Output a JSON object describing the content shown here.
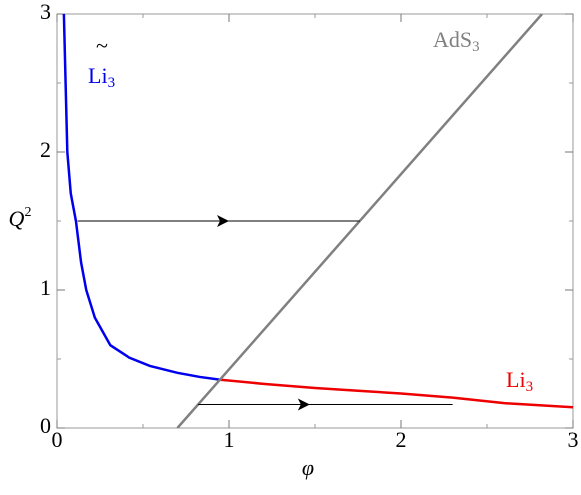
{
  "chart_data": {
    "type": "line",
    "xlabel": "φ",
    "ylabel": {
      "text": "Q",
      "sup": "2"
    },
    "xlim": [
      0,
      3
    ],
    "ylim": [
      0,
      3
    ],
    "xticks": [
      0,
      1,
      2,
      3
    ],
    "yticks": [
      0,
      1,
      2,
      3
    ],
    "xminor": [
      0.5,
      1.5,
      2.5
    ],
    "yminor": [
      0.5,
      1.5,
      2.5
    ],
    "series": [
      {
        "color": "#0000ee",
        "label": {
          "tilde": "~",
          "text": "Li",
          "sub": "3"
        },
        "x": [
          0.04,
          0.06,
          0.08,
          0.11,
          0.14,
          0.17,
          0.22,
          0.31,
          0.42,
          0.54,
          0.7,
          0.83,
          0.95
        ],
        "values": [
          3,
          2,
          1.7,
          1.5,
          1.2,
          1,
          0.8,
          0.6,
          0.51,
          0.45,
          0.4,
          0.37,
          0.35
        ]
      },
      {
        "color": "#ee0000",
        "label": {
          "text": "Li",
          "sub": "3"
        },
        "x": [
          0.95,
          1.2,
          1.5,
          1.75,
          2,
          2.3,
          2.6,
          3
        ],
        "values": [
          0.35,
          0.32,
          0.29,
          0.27,
          0.25,
          0.22,
          0.18,
          0.15
        ]
      },
      {
        "color": "#808080",
        "label": {
          "text": "AdS",
          "sub": "3"
        },
        "x": [
          0.7,
          2.82
        ],
        "values": [
          0,
          3
        ]
      }
    ],
    "arrows": [
      {
        "x": [
          0.12,
          1.76
        ],
        "head": 1.0,
        "y": 1.5
      },
      {
        "x": [
          0.82,
          2.3
        ],
        "head": 1.47,
        "y": 0.17
      }
    ]
  }
}
